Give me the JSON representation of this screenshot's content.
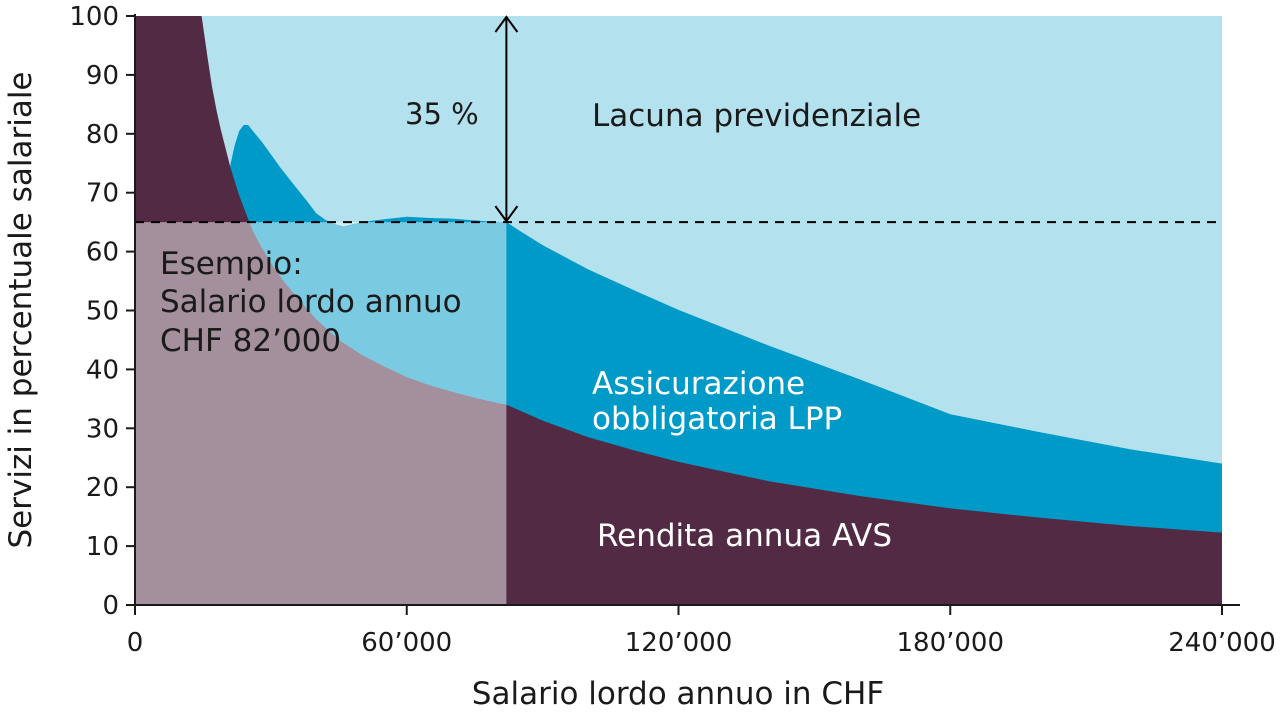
{
  "chart_data": {
    "type": "area",
    "xlabel": "Salario lordo annuo in CHF",
    "ylabel": "Servizi in percentuale salariale",
    "xlim": [
      0,
      240000
    ],
    "ylim": [
      0,
      100
    ],
    "x_ticks": [
      0,
      60000,
      120000,
      180000,
      240000
    ],
    "x_tick_labels": [
      "0",
      "60’000",
      "120’000",
      "180’000",
      "240’000"
    ],
    "y_ticks": [
      0,
      10,
      20,
      30,
      40,
      50,
      60,
      70,
      80,
      90,
      100
    ],
    "y_tick_labels": [
      "0",
      "10",
      "20",
      "30",
      "40",
      "50",
      "60",
      "70",
      "80",
      "90",
      "100"
    ],
    "colors": {
      "avs": "#522a44",
      "lpp": "#009ac8",
      "gap": "#b3e1ee",
      "example_overlay": "#ffffff",
      "line": "#000000"
    },
    "series": [
      {
        "name": "Rendita annua AVS",
        "x": [
          0,
          14700,
          16000,
          17000,
          18000,
          19000,
          20000,
          21000,
          22000,
          23000,
          24000,
          25000,
          26000,
          27500,
          30000,
          33000,
          36000,
          40000,
          45000,
          50000,
          55000,
          60000,
          65000,
          70000,
          75000,
          80000,
          82000,
          85000,
          90000,
          100000,
          110000,
          120000,
          140000,
          160000,
          180000,
          200000,
          220000,
          240000
        ],
        "values": [
          100,
          100,
          93,
          88,
          84,
          80.5,
          77.5,
          74.5,
          72,
          69.5,
          67.5,
          65.5,
          63.5,
          61.3,
          58,
          54.8,
          52,
          48.5,
          45,
          42.5,
          40.5,
          38.7,
          37.3,
          36.2,
          35.2,
          34.3,
          34,
          33,
          31.3,
          28.5,
          26.3,
          24.3,
          21,
          18.5,
          16.4,
          14.8,
          13.4,
          12.3
        ]
      },
      {
        "name": "Assicurazione obbligatoria LPP",
        "x": [
          21000,
          22000,
          23000,
          24000,
          25000,
          26000,
          28000,
          30000,
          32000,
          35000,
          38000,
          40000,
          42000,
          44000,
          46000,
          50000,
          55000,
          60000,
          65000,
          70000,
          75000,
          80000,
          82000,
          85000,
          90000,
          100000,
          110000,
          120000,
          140000,
          160000,
          180000,
          200000,
          220000,
          240000
        ],
        "values": [
          0,
          6,
          11,
          14,
          16,
          17,
          18,
          18.5,
          18.5,
          18.5,
          18.3,
          18,
          18.3,
          19,
          19.8,
          22.5,
          25,
          27.2,
          28.4,
          29.4,
          30.1,
          30.7,
          31,
          30.5,
          29.8,
          28.5,
          27.2,
          25.8,
          23,
          19.8,
          16,
          14.5,
          13,
          11.7
        ]
      }
    ],
    "reference_line": {
      "y": 65,
      "style": "dashed"
    },
    "example_x": 82000,
    "gap_arrow": {
      "x": 82000,
      "from": 65,
      "to": 100,
      "label": "35 %"
    },
    "annotations": {
      "gap_label": "Lacuna previdenziale",
      "lpp_label_line1": "Assicurazione",
      "lpp_label_line2": "obbligatoria LPP",
      "avs_label": "Rendita annua AVS",
      "example_line1": "Esempio:",
      "example_line2": "Salario lordo annuo",
      "example_line3": "CHF 82’000"
    }
  }
}
